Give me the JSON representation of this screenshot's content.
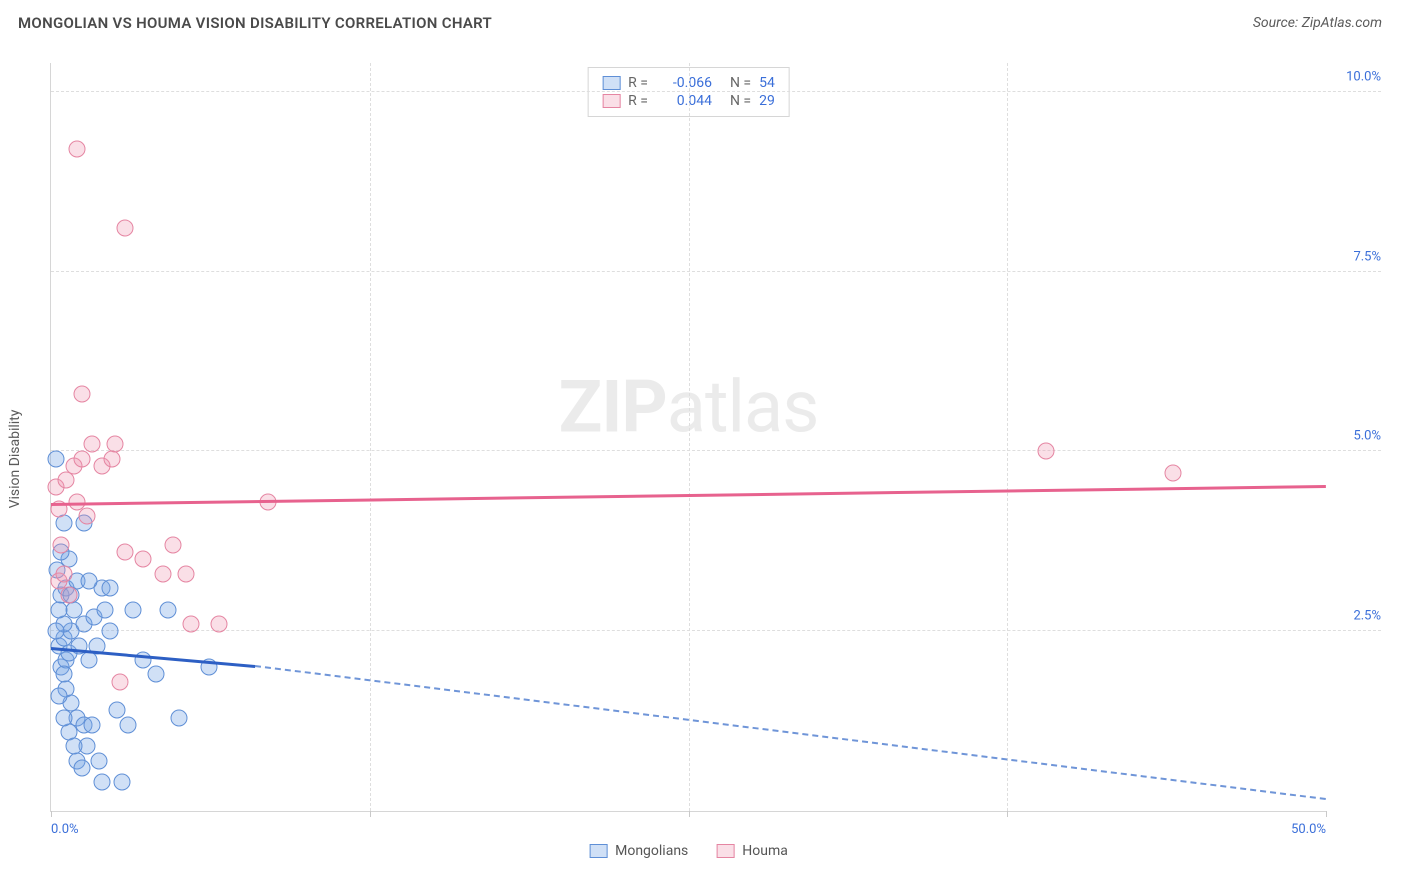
{
  "title": "MONGOLIAN VS HOUMA VISION DISABILITY CORRELATION CHART",
  "source": "Source: ZipAtlas.com",
  "ylabel": "Vision Disability",
  "watermark_bold": "ZIP",
  "watermark_rest": "atlas",
  "chart": {
    "type": "scatter",
    "xlim": [
      0,
      50
    ],
    "ylim": [
      0,
      10.4
    ],
    "x_ticks": [
      0,
      12.5,
      25,
      37.5,
      50
    ],
    "x_tick_labels_visible": {
      "0": "0.0%",
      "50": "50.0%"
    },
    "y_gridlines": [
      2.5,
      5.0,
      7.5,
      10.0
    ],
    "y_tick_labels": {
      "2.5": "2.5%",
      "5.0": "5.0%",
      "7.5": "7.5%",
      "10.0": "10.0%"
    },
    "background_color": "#ffffff",
    "grid_color": "#dedede",
    "axis_color": "#d6d6d6",
    "series": [
      {
        "name": "Mongolians",
        "color_fill": "rgba(120,165,230,0.35)",
        "color_stroke": "#5f8fd6",
        "class": "blue",
        "R": "-0.066",
        "N": "54",
        "trend_solid": {
          "x1": 0,
          "y1": 2.25,
          "x2": 8.0,
          "y2": 2.0,
          "color": "#2d5fc4"
        },
        "trend_dash": {
          "x1": 8.0,
          "y1": 2.0,
          "x2": 50.0,
          "y2": 0.15,
          "color": "#6f95d8"
        },
        "points": [
          [
            0.3,
            2.3
          ],
          [
            0.4,
            2.0
          ],
          [
            0.5,
            2.4
          ],
          [
            0.6,
            2.1
          ],
          [
            0.5,
            1.9
          ],
          [
            0.7,
            2.2
          ],
          [
            0.8,
            2.5
          ],
          [
            0.4,
            3.0
          ],
          [
            0.6,
            3.1
          ],
          [
            0.9,
            2.8
          ],
          [
            0.5,
            2.6
          ],
          [
            0.3,
            2.8
          ],
          [
            0.6,
            1.7
          ],
          [
            0.8,
            1.5
          ],
          [
            1.0,
            1.3
          ],
          [
            1.3,
            1.2
          ],
          [
            1.6,
            1.2
          ],
          [
            1.0,
            0.7
          ],
          [
            1.2,
            0.6
          ],
          [
            1.9,
            0.7
          ],
          [
            2.0,
            0.4
          ],
          [
            2.8,
            0.4
          ],
          [
            3.0,
            1.2
          ],
          [
            1.1,
            2.3
          ],
          [
            1.5,
            2.1
          ],
          [
            1.3,
            2.6
          ],
          [
            1.7,
            2.7
          ],
          [
            2.1,
            2.8
          ],
          [
            2.3,
            2.5
          ],
          [
            2.0,
            3.1
          ],
          [
            1.0,
            3.2
          ],
          [
            1.5,
            3.2
          ],
          [
            2.3,
            3.1
          ],
          [
            0.7,
            3.5
          ],
          [
            0.4,
            3.6
          ],
          [
            0.5,
            4.0
          ],
          [
            0.2,
            4.9
          ],
          [
            1.3,
            4.0
          ],
          [
            3.2,
            2.8
          ],
          [
            4.6,
            2.8
          ],
          [
            4.1,
            1.9
          ],
          [
            5.0,
            1.3
          ],
          [
            6.2,
            2.0
          ],
          [
            0.2,
            2.5
          ],
          [
            0.3,
            1.6
          ],
          [
            0.7,
            1.1
          ],
          [
            1.4,
            0.9
          ],
          [
            0.5,
            1.3
          ],
          [
            0.9,
            0.9
          ],
          [
            2.6,
            1.4
          ],
          [
            3.6,
            2.1
          ],
          [
            0.25,
            3.35
          ],
          [
            0.8,
            3.0
          ],
          [
            1.8,
            2.3
          ]
        ]
      },
      {
        "name": "Houma",
        "color_fill": "rgba(240,150,175,0.30)",
        "color_stroke": "#e585a2",
        "class": "pink",
        "R": "0.044",
        "N": "29",
        "trend_solid": {
          "x1": 0,
          "y1": 4.25,
          "x2": 50.0,
          "y2": 4.5,
          "color": "#e7628e"
        },
        "points": [
          [
            0.3,
            3.2
          ],
          [
            0.5,
            3.3
          ],
          [
            0.4,
            3.7
          ],
          [
            0.3,
            4.2
          ],
          [
            0.2,
            4.5
          ],
          [
            0.6,
            4.6
          ],
          [
            1.0,
            4.3
          ],
          [
            0.9,
            4.8
          ],
          [
            1.2,
            4.9
          ],
          [
            1.6,
            5.1
          ],
          [
            1.4,
            4.1
          ],
          [
            2.0,
            4.8
          ],
          [
            2.4,
            4.9
          ],
          [
            2.5,
            5.1
          ],
          [
            1.2,
            5.8
          ],
          [
            2.9,
            3.6
          ],
          [
            3.6,
            3.5
          ],
          [
            4.4,
            3.3
          ],
          [
            5.3,
            3.3
          ],
          [
            4.8,
            3.7
          ],
          [
            5.5,
            2.6
          ],
          [
            6.6,
            2.6
          ],
          [
            8.5,
            4.3
          ],
          [
            2.7,
            1.8
          ],
          [
            1.0,
            9.2
          ],
          [
            2.9,
            8.1
          ],
          [
            39.0,
            5.0
          ],
          [
            44.0,
            4.7
          ],
          [
            0.7,
            3.0
          ]
        ]
      }
    ]
  },
  "legend_bottom": [
    {
      "label": "Mongolians",
      "class": "blue"
    },
    {
      "label": "Houma",
      "class": "pink"
    }
  ]
}
